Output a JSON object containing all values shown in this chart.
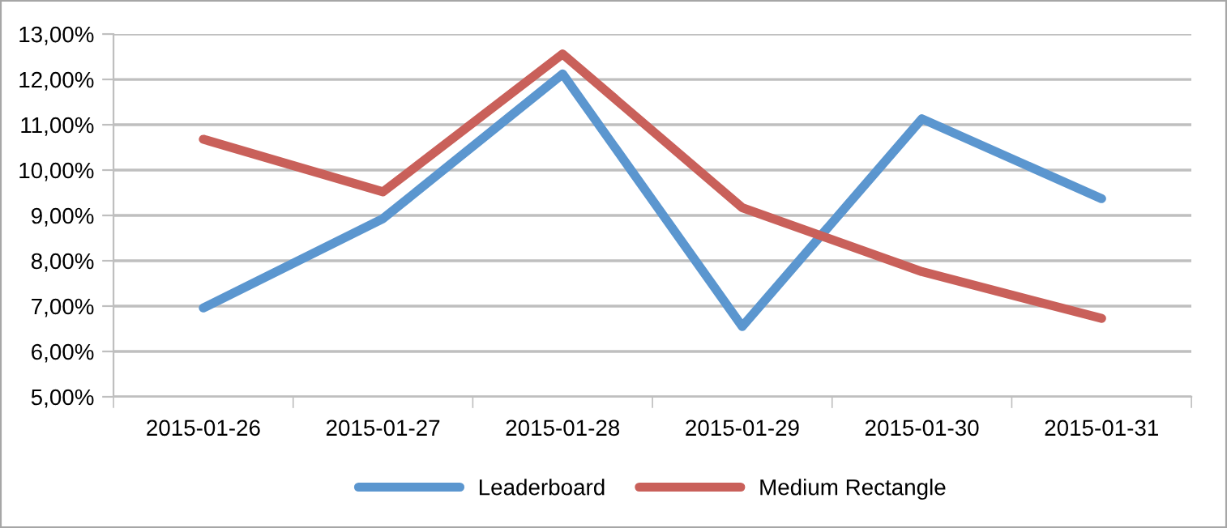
{
  "chart_data": {
    "type": "line",
    "categories": [
      "2015-01-26",
      "2015-01-27",
      "2015-01-28",
      "2015-01-29",
      "2015-01-30",
      "2015-01-31"
    ],
    "series": [
      {
        "name": "Leaderboard",
        "color": "#5b96cf",
        "values": [
          6.96,
          8.93,
          12.12,
          6.55,
          11.13,
          9.37
        ]
      },
      {
        "name": "Medium Rectangle",
        "color": "#c9605a",
        "values": [
          10.68,
          9.52,
          12.56,
          9.17,
          7.76,
          6.73
        ]
      }
    ],
    "ylim": [
      5,
      13
    ],
    "yticks": [
      {
        "value": 5,
        "label": "5,00%"
      },
      {
        "value": 6,
        "label": "6,00%"
      },
      {
        "value": 7,
        "label": "7,00%"
      },
      {
        "value": 8,
        "label": "8,00%"
      },
      {
        "value": 9,
        "label": "9,00%"
      },
      {
        "value": 10,
        "label": "10,00%"
      },
      {
        "value": 11,
        "label": "11,00%"
      },
      {
        "value": 12,
        "label": "12,00%"
      },
      {
        "value": 13,
        "label": "13,00%"
      }
    ],
    "grid": "y",
    "legend": "bottom",
    "marker": "none",
    "line_style": "solid"
  }
}
